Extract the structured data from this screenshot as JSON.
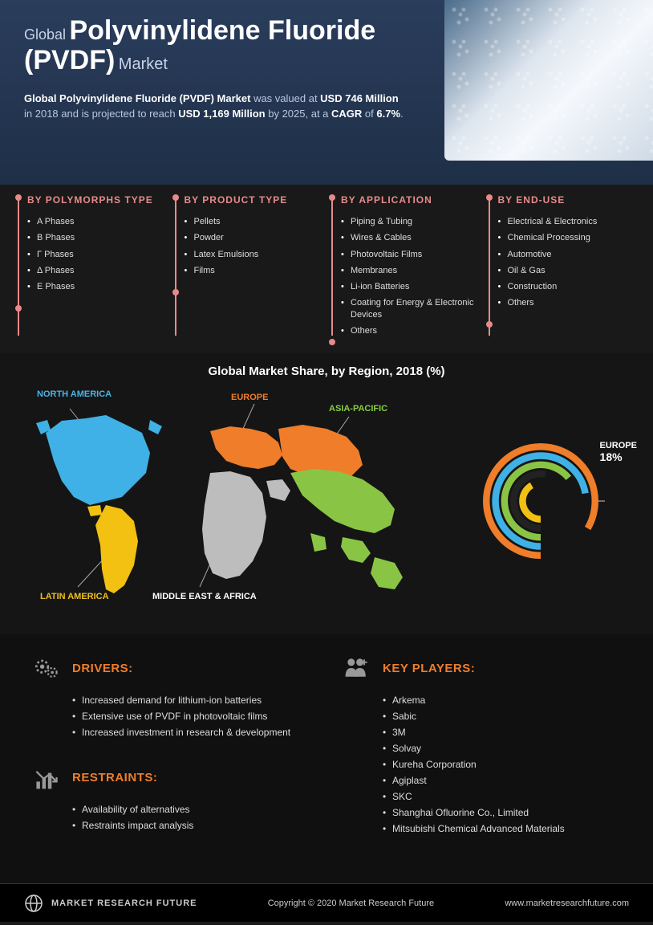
{
  "header": {
    "prefix": "Global",
    "main": "Polyvinylidene Fluoride (PVDF)",
    "suffix": "Market",
    "description_html": "<b>Global Polyvinylidene Fluoride (PVDF) Market</b> was valued at <b>USD 746 Million</b> in 2018 and is projected to reach <b>USD 1,169 Million</b> by 2025, at a <b>CAGR</b> of <b>6.7%</b>."
  },
  "categories": [
    {
      "title": "BY POLYMORPHS TYPE",
      "items": [
        "A Phases",
        "B Phases",
        "Γ Phases",
        "Δ Phases",
        "E Phases"
      ]
    },
    {
      "title": "BY PRODUCT TYPE",
      "items": [
        "Pellets",
        "Powder",
        "Latex Emulsions",
        "Films"
      ]
    },
    {
      "title": "BY APPLICATION",
      "items": [
        "Piping & Tubing",
        "Wires & Cables",
        "Photovoltaic Films",
        "Membranes",
        "Li-ion Batteries",
        "Coating for Energy & Electronic Devices",
        "Others"
      ]
    },
    {
      "title": "BY END-USE",
      "items": [
        "Electrical & Electronics",
        "Chemical Processing",
        "Automotive",
        "Oil & Gas",
        "Construction",
        "Others"
      ]
    }
  ],
  "map": {
    "title": "Global Market Share, by Region, 2018 (%)",
    "regions": {
      "na": {
        "label": "NORTH AMERICA",
        "color": "#3fb1e6"
      },
      "eu": {
        "label": "EUROPE",
        "color": "#ef7d29"
      },
      "ap": {
        "label": "ASIA-PACIFIC",
        "color": "#8ac445"
      },
      "la": {
        "label": "LATIN AMERICA",
        "color": "#f2c111"
      },
      "me": {
        "label": "MIDDLE EAST & AFRICA",
        "color": "#bdbdbd"
      }
    },
    "donut": {
      "highlight_label": "EUROPE",
      "highlight_value": "18%",
      "rings": [
        {
          "color": "#ef7d29",
          "radius": 72,
          "span": 300
        },
        {
          "color": "#3fb1e6",
          "radius": 60,
          "span": 260
        },
        {
          "color": "#8ac445",
          "radius": 48,
          "span": 230
        },
        {
          "color": "#222222",
          "radius": 36,
          "span": 190
        },
        {
          "color": "#f2c111",
          "radius": 24,
          "span": 150
        }
      ]
    }
  },
  "bottom": {
    "drivers": {
      "title": "DRIVERS:",
      "items": [
        "Increased demand for lithium-ion batteries",
        "Extensive use of PVDF in photovoltaic films",
        "Increased investment in research & development"
      ]
    },
    "restraints": {
      "title": "RESTRAINTS:",
      "items": [
        "Availability of alternatives",
        "Restraints impact analysis"
      ]
    },
    "players": {
      "title": "KEY PLAYERS:",
      "items": [
        "Arkema",
        "Sabic",
        "3M",
        "Solvay",
        "Kureha Corporation",
        "Agiplast",
        "SKC",
        "Shanghai Ofluorine Co., Limited",
        "Mitsubishi Chemical Advanced Materials"
      ]
    }
  },
  "footer": {
    "brand": "MARKET RESEARCH FUTURE",
    "copyright": "Copyright © 2020 Market Research Future",
    "url": "www.marketresearchfuture.com"
  }
}
